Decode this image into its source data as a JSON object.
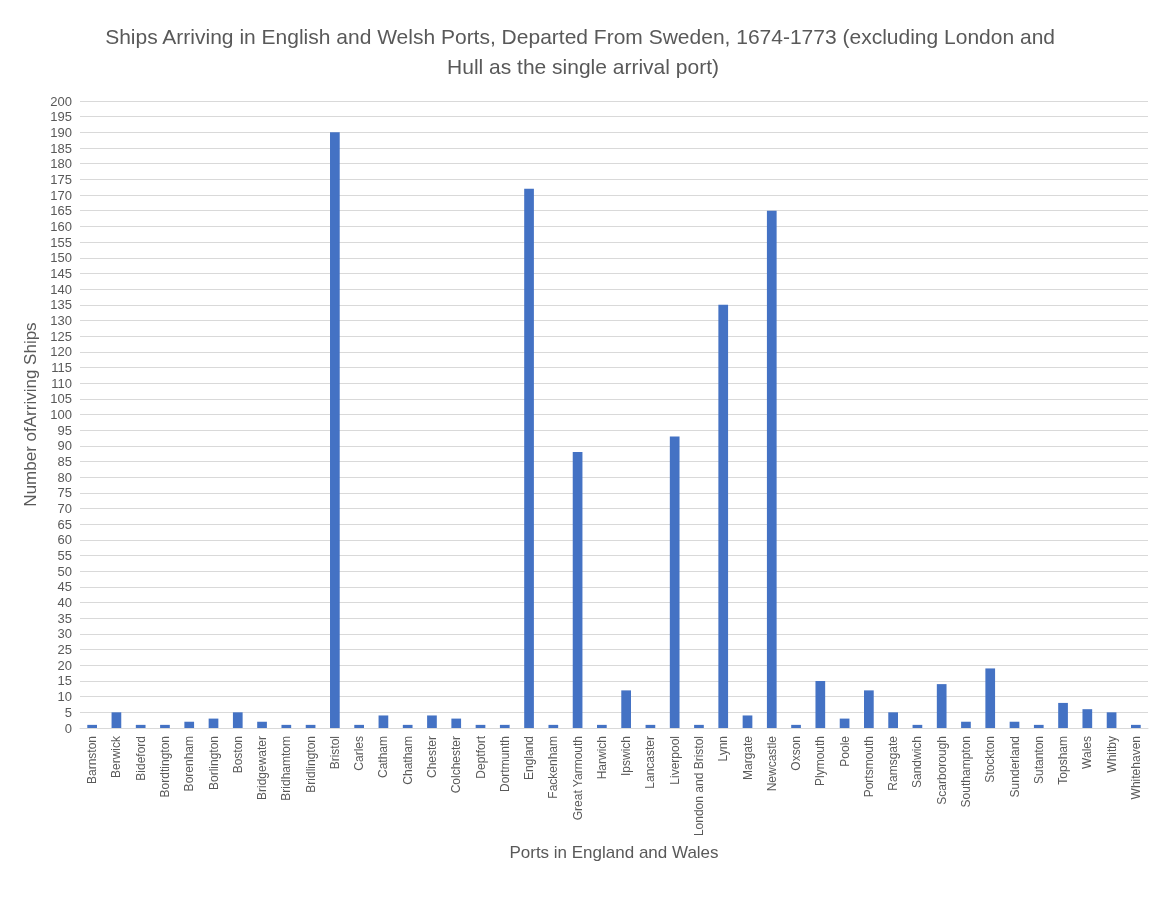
{
  "chart_data": {
    "type": "bar",
    "title": "Ships Arriving in English and Welsh Ports, Departed From Sweden, 1674-1773 (excluding London and Hull as the single arrival port)",
    "xlabel": "Ports in England and Wales",
    "ylabel": "Number ofArriving Ships",
    "categories": [
      "Barnston",
      "Berwick",
      "Bideford",
      "Bordtington",
      "Borenham",
      "Borlington",
      "Boston",
      "Bridgewater",
      "Bridhamtom",
      "Bridlington",
      "Bristol",
      "Carles",
      "Catham",
      "Chatham",
      "Chester",
      "Colchester",
      "Deptfort",
      "Dortmunth",
      "England",
      "Fackenham",
      "Great Yarmouth",
      "Harwich",
      "Ipswich",
      "Lancaster",
      "Liverpool",
      "London and Bristol",
      "Lynn",
      "Margate",
      "Newcastle",
      "Oxson",
      "Plymouth",
      "Poole",
      "Portsmouth",
      "Ramsgate",
      "Sandwich",
      "Scarborough",
      "Southampton",
      "Stockton",
      "Sunderland",
      "Sutanton",
      "Topsham",
      "Wales",
      "Whitby",
      "Whitehaven"
    ],
    "values": [
      1,
      5,
      1,
      1,
      2,
      3,
      5,
      2,
      1,
      1,
      190,
      1,
      4,
      1,
      4,
      3,
      1,
      1,
      172,
      1,
      88,
      1,
      12,
      1,
      93,
      1,
      135,
      4,
      165,
      1,
      15,
      3,
      12,
      5,
      1,
      14,
      2,
      19,
      2,
      1,
      8,
      6,
      5,
      1
    ],
    "color": "#4472c4",
    "ylim": [
      0,
      200
    ],
    "yticks": [
      0,
      5,
      10,
      15,
      20,
      25,
      30,
      35,
      40,
      45,
      50,
      55,
      60,
      65,
      70,
      75,
      80,
      85,
      90,
      95,
      100,
      105,
      110,
      115,
      120,
      125,
      130,
      135,
      140,
      145,
      150,
      155,
      160,
      165,
      170,
      175,
      180,
      185,
      190,
      195,
      200
    ],
    "grid": "y"
  }
}
